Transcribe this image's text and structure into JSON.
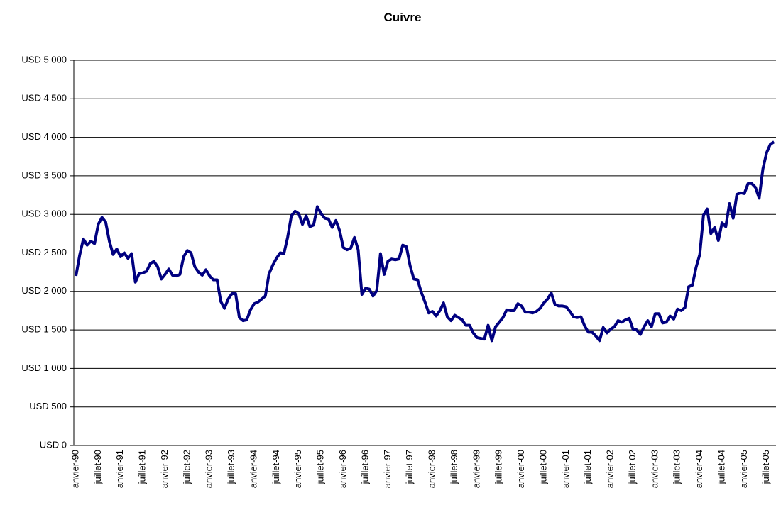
{
  "chart_data": {
    "type": "line",
    "title": "Cuivre",
    "categories": [
      "anvier-90",
      null,
      null,
      null,
      null,
      null,
      "juillet-90",
      null,
      null,
      null,
      null,
      null,
      "anvier-91",
      null,
      null,
      null,
      null,
      null,
      "juillet-91",
      null,
      null,
      null,
      null,
      null,
      "anvier-92",
      null,
      null,
      null,
      null,
      null,
      "juillet-92",
      null,
      null,
      null,
      null,
      null,
      "anvier-93",
      null,
      null,
      null,
      null,
      null,
      "juillet-93",
      null,
      null,
      null,
      null,
      null,
      "anvier-94",
      null,
      null,
      null,
      null,
      null,
      "juillet-94",
      null,
      null,
      null,
      null,
      null,
      "anvier-95",
      null,
      null,
      null,
      null,
      null,
      "juillet-95",
      null,
      null,
      null,
      null,
      null,
      "anvier-96",
      null,
      null,
      null,
      null,
      null,
      "juillet-96",
      null,
      null,
      null,
      null,
      null,
      "anvier-97",
      null,
      null,
      null,
      null,
      null,
      "juillet-97",
      null,
      null,
      null,
      null,
      null,
      "anvier-98",
      null,
      null,
      null,
      null,
      null,
      "juillet-98",
      null,
      null,
      null,
      null,
      null,
      "anvier-99",
      null,
      null,
      null,
      null,
      null,
      "juillet-99",
      null,
      null,
      null,
      null,
      null,
      "anvier-00",
      null,
      null,
      null,
      null,
      null,
      "juillet-00",
      null,
      null,
      null,
      null,
      null,
      "anvier-01",
      null,
      null,
      null,
      null,
      null,
      "juillet-01",
      null,
      null,
      null,
      null,
      null,
      "anvier-02",
      null,
      null,
      null,
      null,
      null,
      "juillet-02",
      null,
      null,
      null,
      null,
      null,
      "anvier-03",
      null,
      null,
      null,
      null,
      null,
      "juillet-03",
      null,
      null,
      null,
      null,
      null,
      "anvier-04",
      null,
      null,
      null,
      null,
      null,
      "juillet-04",
      null,
      null,
      null,
      null,
      null,
      "anvier-05",
      null,
      null,
      null,
      null,
      null,
      "juillet-05",
      null,
      null
    ],
    "values": [
      2200,
      2470,
      2680,
      2600,
      2650,
      2620,
      2870,
      2960,
      2900,
      2650,
      2480,
      2550,
      2450,
      2500,
      2430,
      2490,
      2120,
      2230,
      2240,
      2260,
      2360,
      2390,
      2320,
      2160,
      2220,
      2290,
      2210,
      2200,
      2220,
      2450,
      2530,
      2500,
      2320,
      2250,
      2210,
      2280,
      2200,
      2150,
      2150,
      1870,
      1780,
      1900,
      1970,
      1970,
      1660,
      1620,
      1630,
      1760,
      1840,
      1860,
      1900,
      1940,
      2230,
      2340,
      2430,
      2500,
      2490,
      2700,
      2980,
      3040,
      3010,
      2870,
      2980,
      2840,
      2860,
      3100,
      3010,
      2950,
      2940,
      2830,
      2920,
      2790,
      2570,
      2540,
      2560,
      2700,
      2540,
      1960,
      2040,
      2030,
      1940,
      2010,
      2490,
      2220,
      2390,
      2420,
      2410,
      2420,
      2600,
      2580,
      2330,
      2160,
      2150,
      1990,
      1860,
      1720,
      1740,
      1680,
      1750,
      1850,
      1670,
      1620,
      1690,
      1660,
      1630,
      1560,
      1560,
      1460,
      1400,
      1390,
      1380,
      1560,
      1360,
      1540,
      1600,
      1660,
      1760,
      1750,
      1750,
      1840,
      1810,
      1730,
      1730,
      1720,
      1740,
      1780,
      1850,
      1900,
      1980,
      1830,
      1810,
      1810,
      1800,
      1740,
      1670,
      1660,
      1670,
      1550,
      1470,
      1470,
      1420,
      1360,
      1530,
      1460,
      1510,
      1540,
      1620,
      1600,
      1630,
      1650,
      1510,
      1500,
      1440,
      1540,
      1620,
      1540,
      1710,
      1710,
      1590,
      1600,
      1680,
      1640,
      1770,
      1750,
      1790,
      2060,
      2080,
      2310,
      2480,
      2990,
      3070,
      2750,
      2830,
      2660,
      2890,
      2840,
      3140,
      2950,
      3260,
      3280,
      3270,
      3400,
      3400,
      3350,
      3210,
      3590,
      3800,
      3910,
      3940
    ],
    "color": "#000080",
    "ylim": [
      0,
      5000
    ],
    "yticks": [
      {
        "value": 0,
        "label": "USD 0"
      },
      {
        "value": 500,
        "label": "USD 500"
      },
      {
        "value": 1000,
        "label": "USD 1 000"
      },
      {
        "value": 1500,
        "label": "USD 1 500"
      },
      {
        "value": 2000,
        "label": "USD 2 000"
      },
      {
        "value": 2500,
        "label": "USD 2 500"
      },
      {
        "value": 3000,
        "label": "USD 3 000"
      },
      {
        "value": 3500,
        "label": "USD 3 500"
      },
      {
        "value": 4000,
        "label": "USD 4 000"
      },
      {
        "value": 4500,
        "label": "USD 4 500"
      },
      {
        "value": 5000,
        "label": "USD 5 000"
      }
    ],
    "grid": true
  }
}
